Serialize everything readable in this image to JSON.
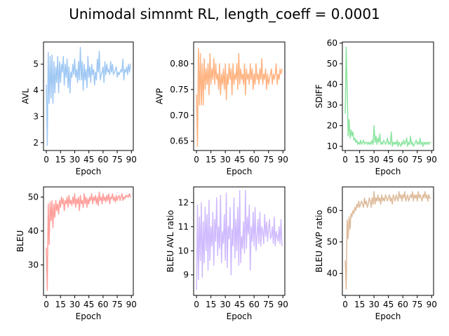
{
  "title": "Unimodal simnmt RL, length_coeff = 0.0001",
  "chart_data": [
    {
      "type": "line",
      "xlabel": "Epoch",
      "ylabel": "AVL",
      "color": "#a1c9f4",
      "xlim": [
        -3,
        92
      ],
      "ylim": [
        1.7,
        5.85
      ],
      "xticks": [
        0,
        15,
        30,
        45,
        60,
        75,
        90
      ],
      "xtick_labels": [
        "0",
        "15",
        "30",
        "45",
        "60",
        "75",
        "90"
      ],
      "yticks": [
        2,
        3,
        4,
        5
      ],
      "ytick_labels": [
        "2",
        "3",
        "4",
        "5"
      ],
      "x": [
        0,
        1,
        2,
        3,
        4,
        5,
        6,
        7,
        8,
        9,
        10,
        11,
        12,
        13,
        14,
        15,
        16,
        17,
        18,
        19,
        20,
        21,
        22,
        23,
        24,
        25,
        26,
        27,
        28,
        29,
        30,
        31,
        32,
        33,
        34,
        35,
        36,
        37,
        38,
        39,
        40,
        41,
        42,
        43,
        44,
        45,
        46,
        47,
        48,
        49,
        50,
        51,
        52,
        53,
        54,
        55,
        56,
        57,
        58,
        59,
        60,
        61,
        62,
        63,
        64,
        65,
        66,
        67,
        68,
        69,
        70,
        71,
        72,
        73,
        74,
        75,
        76,
        77,
        78,
        79,
        80,
        81,
        82,
        83,
        84,
        85,
        86,
        87,
        88,
        89
      ],
      "y": [
        4.2,
        1.9,
        5.45,
        3.5,
        5.3,
        3.7,
        5.35,
        3.5,
        5.1,
        3.9,
        4.9,
        4.3,
        5.3,
        3.9,
        5.1,
        4.3,
        5.0,
        4.7,
        5.3,
        4.2,
        5.0,
        4.5,
        5.2,
        4.1,
        4.9,
        3.9,
        4.7,
        4.5,
        5.0,
        4.6,
        5.2,
        4.5,
        4.8,
        4.3,
        5.1,
        4.4,
        5.65,
        4.4,
        5.1,
        4.0,
        5.0,
        4.4,
        4.8,
        4.1,
        5.3,
        4.5,
        4.9,
        4.3,
        5.0,
        4.6,
        4.8,
        4.2,
        4.7,
        4.4,
        5.2,
        4.7,
        5.5,
        4.4,
        4.6,
        4.7,
        4.9,
        4.3,
        5.1,
        4.6,
        5.0,
        4.7,
        4.8,
        4.6,
        5.1,
        4.7,
        5.0,
        4.6,
        4.7,
        4.8,
        4.9,
        4.5,
        4.7,
        4.6,
        4.7,
        4.8,
        4.7,
        5.2,
        4.4,
        4.8,
        4.7,
        4.9,
        4.6,
        5.0,
        4.7,
        5.0
      ]
    },
    {
      "type": "line",
      "xlabel": "Epoch",
      "ylabel": "AVP",
      "color": "#ffb482",
      "xlim": [
        -3,
        92
      ],
      "ylim": [
        0.632,
        0.842
      ],
      "xticks": [
        0,
        15,
        30,
        45,
        60,
        75,
        90
      ],
      "xtick_labels": [
        "0",
        "15",
        "30",
        "45",
        "60",
        "75",
        "90"
      ],
      "yticks": [
        0.65,
        0.7,
        0.75,
        0.8
      ],
      "ytick_labels": [
        "0.65",
        "0.70",
        "0.75",
        "0.80"
      ],
      "x": [
        0,
        1,
        2,
        3,
        4,
        5,
        6,
        7,
        8,
        9,
        10,
        11,
        12,
        13,
        14,
        15,
        16,
        17,
        18,
        19,
        20,
        21,
        22,
        23,
        24,
        25,
        26,
        27,
        28,
        29,
        30,
        31,
        32,
        33,
        34,
        35,
        36,
        37,
        38,
        39,
        40,
        41,
        42,
        43,
        44,
        45,
        46,
        47,
        48,
        49,
        50,
        51,
        52,
        53,
        54,
        55,
        56,
        57,
        58,
        59,
        60,
        61,
        62,
        63,
        64,
        65,
        66,
        67,
        68,
        69,
        70,
        71,
        72,
        73,
        74,
        75,
        76,
        77,
        78,
        79,
        80,
        81,
        82,
        83,
        84,
        85,
        86,
        87,
        88,
        89
      ],
      "y": [
        0.74,
        0.64,
        0.83,
        0.72,
        0.82,
        0.72,
        0.8,
        0.72,
        0.81,
        0.75,
        0.79,
        0.76,
        0.8,
        0.74,
        0.82,
        0.76,
        0.79,
        0.77,
        0.81,
        0.76,
        0.8,
        0.77,
        0.78,
        0.75,
        0.8,
        0.74,
        0.78,
        0.76,
        0.79,
        0.75,
        0.8,
        0.73,
        0.78,
        0.76,
        0.8,
        0.77,
        0.79,
        0.74,
        0.8,
        0.76,
        0.78,
        0.77,
        0.8,
        0.75,
        0.82,
        0.76,
        0.79,
        0.77,
        0.78,
        0.76,
        0.8,
        0.74,
        0.79,
        0.77,
        0.78,
        0.76,
        0.8,
        0.77,
        0.79,
        0.75,
        0.78,
        0.76,
        0.8,
        0.77,
        0.78,
        0.76,
        0.79,
        0.77,
        0.81,
        0.76,
        0.78,
        0.77,
        0.79,
        0.75,
        0.78,
        0.76,
        0.77,
        0.78,
        0.79,
        0.76,
        0.78,
        0.77,
        0.78,
        0.8,
        0.76,
        0.78,
        0.77,
        0.79,
        0.78,
        0.79
      ]
    },
    {
      "type": "line",
      "xlabel": "Epoch",
      "ylabel": "SDIFF",
      "color": "#8de5a1",
      "xlim": [
        -3,
        92
      ],
      "ylim": [
        8.0,
        60.5
      ],
      "xticks": [
        0,
        15,
        30,
        45,
        60,
        75,
        90
      ],
      "xtick_labels": [
        "0",
        "15",
        "30",
        "45",
        "60",
        "75",
        "90"
      ],
      "yticks": [
        10,
        20,
        30,
        40,
        50,
        60
      ],
      "ytick_labels": [
        "10",
        "20",
        "30",
        "40",
        "50",
        "60"
      ],
      "x": [
        0,
        1,
        2,
        3,
        4,
        5,
        6,
        7,
        8,
        9,
        10,
        11,
        12,
        13,
        14,
        15,
        16,
        17,
        18,
        19,
        20,
        21,
        22,
        23,
        24,
        25,
        26,
        27,
        28,
        29,
        30,
        31,
        32,
        33,
        34,
        35,
        36,
        37,
        38,
        39,
        40,
        41,
        42,
        43,
        44,
        45,
        46,
        47,
        48,
        49,
        50,
        51,
        52,
        53,
        54,
        55,
        56,
        57,
        58,
        59,
        60,
        61,
        62,
        63,
        64,
        65,
        66,
        67,
        68,
        69,
        70,
        71,
        72,
        73,
        74,
        75,
        76,
        77,
        78,
        79,
        80,
        81,
        82,
        83,
        84,
        85,
        86,
        87,
        88,
        89
      ],
      "y": [
        26,
        58,
        38,
        15,
        23,
        14,
        18,
        15,
        17,
        13,
        14,
        12,
        13,
        11,
        12,
        11,
        13,
        11,
        12,
        13,
        11,
        12,
        12,
        11,
        12,
        11,
        12,
        11,
        13,
        11,
        20,
        12,
        15,
        11,
        14,
        12,
        16,
        11,
        12,
        11,
        13,
        12,
        11,
        12,
        14,
        11,
        12,
        11,
        17,
        10,
        12,
        11,
        12,
        11,
        13,
        10,
        12,
        11,
        10,
        12,
        11,
        13,
        11,
        12,
        14,
        10,
        12,
        11,
        15,
        11,
        12,
        10,
        11,
        12,
        13,
        11,
        12,
        11,
        14,
        11,
        12,
        10,
        12,
        11,
        12,
        11,
        12,
        11,
        12,
        12
      ]
    },
    {
      "type": "line",
      "xlabel": "Epoch",
      "ylabel": "BLEU",
      "color": "#ff9f9b",
      "xlim": [
        -3,
        92
      ],
      "ylim": [
        21.0,
        53.0
      ],
      "xticks": [
        0,
        15,
        30,
        45,
        60,
        75,
        90
      ],
      "xtick_labels": [
        "0",
        "15",
        "30",
        "45",
        "60",
        "75",
        "90"
      ],
      "yticks": [
        30,
        40,
        50
      ],
      "ytick_labels": [
        "30",
        "40",
        "50"
      ],
      "x": [
        0,
        1,
        2,
        3,
        4,
        5,
        6,
        7,
        8,
        9,
        10,
        11,
        12,
        13,
        14,
        15,
        16,
        17,
        18,
        19,
        20,
        21,
        22,
        23,
        24,
        25,
        26,
        27,
        28,
        29,
        30,
        31,
        32,
        33,
        34,
        35,
        36,
        37,
        38,
        39,
        40,
        41,
        42,
        43,
        44,
        45,
        46,
        47,
        48,
        49,
        50,
        51,
        52,
        53,
        54,
        55,
        56,
        57,
        58,
        59,
        60,
        61,
        62,
        63,
        64,
        65,
        66,
        67,
        68,
        69,
        70,
        71,
        72,
        73,
        74,
        75,
        76,
        77,
        78,
        79,
        80,
        81,
        82,
        83,
        84,
        85,
        86,
        87,
        88,
        89
      ],
      "y": [
        35,
        22.5,
        48,
        36,
        48.5,
        43,
        49,
        41,
        48,
        44,
        49,
        46,
        48,
        45,
        49,
        47,
        50,
        48,
        49.5,
        46,
        49,
        48,
        50,
        47,
        50.5,
        48,
        49,
        47.5,
        50,
        48,
        51,
        47,
        49.5,
        48,
        50,
        46,
        50.5,
        48,
        49,
        47,
        51,
        48,
        50,
        47,
        49.5,
        48,
        50,
        49,
        51,
        48,
        50,
        49,
        50.5,
        48,
        50,
        47.5,
        51.5,
        49,
        50,
        48,
        51,
        49,
        50,
        48.5,
        50.5,
        49,
        51,
        48,
        50,
        49.5,
        51,
        49,
        50,
        48.5,
        50.5,
        49,
        50,
        50.5,
        49,
        50,
        51,
        49,
        50,
        49.5,
        50.5,
        50,
        50.5,
        50,
        51,
        50
      ]
    },
    {
      "type": "line",
      "xlabel": "Epoch",
      "ylabel": "BLEU AVL ratio",
      "color": "#d0bbff",
      "xlim": [
        -3,
        92
      ],
      "ylim": [
        8.15,
        12.65
      ],
      "xticks": [
        0,
        15,
        30,
        45,
        60,
        75,
        90
      ],
      "xtick_labels": [
        "0",
        "15",
        "30",
        "45",
        "60",
        "75",
        "90"
      ],
      "yticks": [
        9,
        10,
        11,
        12
      ],
      "ytick_labels": [
        "9",
        "10",
        "11",
        "12"
      ],
      "x": [
        0,
        1,
        2,
        3,
        4,
        5,
        6,
        7,
        8,
        9,
        10,
        11,
        12,
        13,
        14,
        15,
        16,
        17,
        18,
        19,
        20,
        21,
        22,
        23,
        24,
        25,
        26,
        27,
        28,
        29,
        30,
        31,
        32,
        33,
        34,
        35,
        36,
        37,
        38,
        39,
        40,
        41,
        42,
        43,
        44,
        45,
        46,
        47,
        48,
        49,
        50,
        51,
        52,
        53,
        54,
        55,
        56,
        57,
        58,
        59,
        60,
        61,
        62,
        63,
        64,
        65,
        66,
        67,
        68,
        69,
        70,
        71,
        72,
        73,
        74,
        75,
        76,
        77,
        78,
        79,
        80,
        81,
        82,
        83,
        84,
        85,
        86,
        87,
        88,
        89
      ],
      "y": [
        8.4,
        11.9,
        8.8,
        11.4,
        9.6,
        12.0,
        8.9,
        11.2,
        9.5,
        11.8,
        10.0,
        11.5,
        9.2,
        12.1,
        9.6,
        11.0,
        10.2,
        11.6,
        9.4,
        11.3,
        10.4,
        12.2,
        9.8,
        11.0,
        10.1,
        12.3,
        9.5,
        10.8,
        10.3,
        11.5,
        9.6,
        12.4,
        9.3,
        11.0,
        10.5,
        11.8,
        9.0,
        10.9,
        10.2,
        12.2,
        9.7,
        11.3,
        10.0,
        11.8,
        9.4,
        12.5,
        9.5,
        10.6,
        10.1,
        11.2,
        9.9,
        12.5,
        10.1,
        11.4,
        10.7,
        11.9,
        9.2,
        11.0,
        10.4,
        11.6,
        10.2,
        11.8,
        10.0,
        10.6,
        11.3,
        10.3,
        11.6,
        10.2,
        11.0,
        10.8,
        10.3,
        11.5,
        10.6,
        11.2,
        10.4,
        10.9,
        11.3,
        10.5,
        10.6,
        11.0,
        10.3,
        11.4,
        10.2,
        10.8,
        10.6,
        10.4,
        11.0,
        10.3,
        11.3,
        10.2
      ]
    },
    {
      "type": "line",
      "xlabel": "Epoch",
      "ylabel": "BLEU AVP ratio",
      "color": "#debb9b",
      "xlim": [
        -3,
        92
      ],
      "ylim": [
        33.0,
        67.5
      ],
      "xticks": [
        0,
        15,
        30,
        45,
        60,
        75,
        90
      ],
      "xtick_labels": [
        "0",
        "15",
        "30",
        "45",
        "60",
        "75",
        "90"
      ],
      "yticks": [
        40,
        50,
        60
      ],
      "ytick_labels": [
        "40",
        "50",
        "60"
      ],
      "x": [
        0,
        1,
        2,
        3,
        4,
        5,
        6,
        7,
        8,
        9,
        10,
        11,
        12,
        13,
        14,
        15,
        16,
        17,
        18,
        19,
        20,
        21,
        22,
        23,
        24,
        25,
        26,
        27,
        28,
        29,
        30,
        31,
        32,
        33,
        34,
        35,
        36,
        37,
        38,
        39,
        40,
        41,
        42,
        43,
        44,
        45,
        46,
        47,
        48,
        49,
        50,
        51,
        52,
        53,
        54,
        55,
        56,
        57,
        58,
        59,
        60,
        61,
        62,
        63,
        64,
        65,
        66,
        67,
        68,
        69,
        70,
        71,
        72,
        73,
        74,
        75,
        76,
        77,
        78,
        79,
        80,
        81,
        82,
        83,
        84,
        85,
        86,
        87,
        88,
        89
      ],
      "y": [
        44,
        35,
        57,
        51,
        58,
        54,
        59,
        58,
        60,
        59,
        61,
        60,
        62,
        61,
        63,
        61,
        62,
        63,
        62,
        61,
        64,
        62,
        63,
        61,
        62,
        64,
        63,
        61,
        64,
        62,
        66,
        62,
        64,
        63,
        65,
        63,
        64,
        62,
        65,
        63,
        64,
        63,
        65,
        64,
        63,
        64,
        65,
        63,
        64,
        62,
        65,
        64,
        63,
        65,
        64,
        63,
        66,
        64,
        65,
        63,
        65,
        64,
        66,
        63,
        64,
        65,
        63,
        64,
        65,
        64,
        66,
        63,
        65,
        64,
        65,
        63,
        66,
        64,
        65,
        64,
        63,
        65,
        64,
        66,
        64,
        65,
        63,
        65,
        64,
        64
      ]
    }
  ]
}
